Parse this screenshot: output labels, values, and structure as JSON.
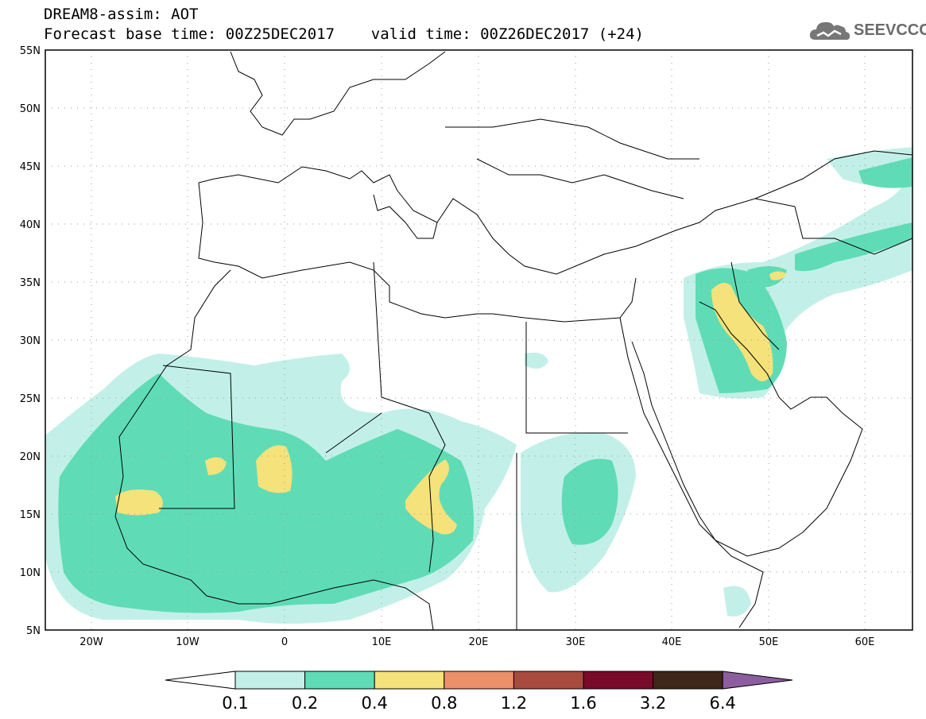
{
  "title": {
    "line1": "DREAM8-assim: AOT",
    "line2": "Forecast base time: 00Z25DEC2017    valid time: 00Z26DEC2017 (+24)"
  },
  "logo": {
    "text": "SEEVCCC",
    "icon": "cloud-logo-icon"
  },
  "map": {
    "lat_labels": [
      "55N",
      "50N",
      "45N",
      "40N",
      "35N",
      "30N",
      "25N",
      "20N",
      "15N",
      "10N",
      "5N"
    ],
    "lon_labels": [
      "20W",
      "10W",
      "0",
      "10E",
      "20E",
      "30E",
      "40E",
      "50E",
      "60E"
    ],
    "extent": {
      "lon_min": -25,
      "lon_max": 65,
      "lat_min": 5,
      "lat_max": 55
    }
  },
  "colorbar": {
    "labels": [
      "0.1",
      "0.2",
      "0.4",
      "0.8",
      "1.2",
      "1.6",
      "3.2",
      "6.4"
    ],
    "colors": [
      "#ffffff",
      "#c2f0e8",
      "#5fdcb5",
      "#f5e27a",
      "#ec906a",
      "#a84a3e",
      "#7a0a2a",
      "#3e2618",
      "#8c5ea0"
    ]
  }
}
